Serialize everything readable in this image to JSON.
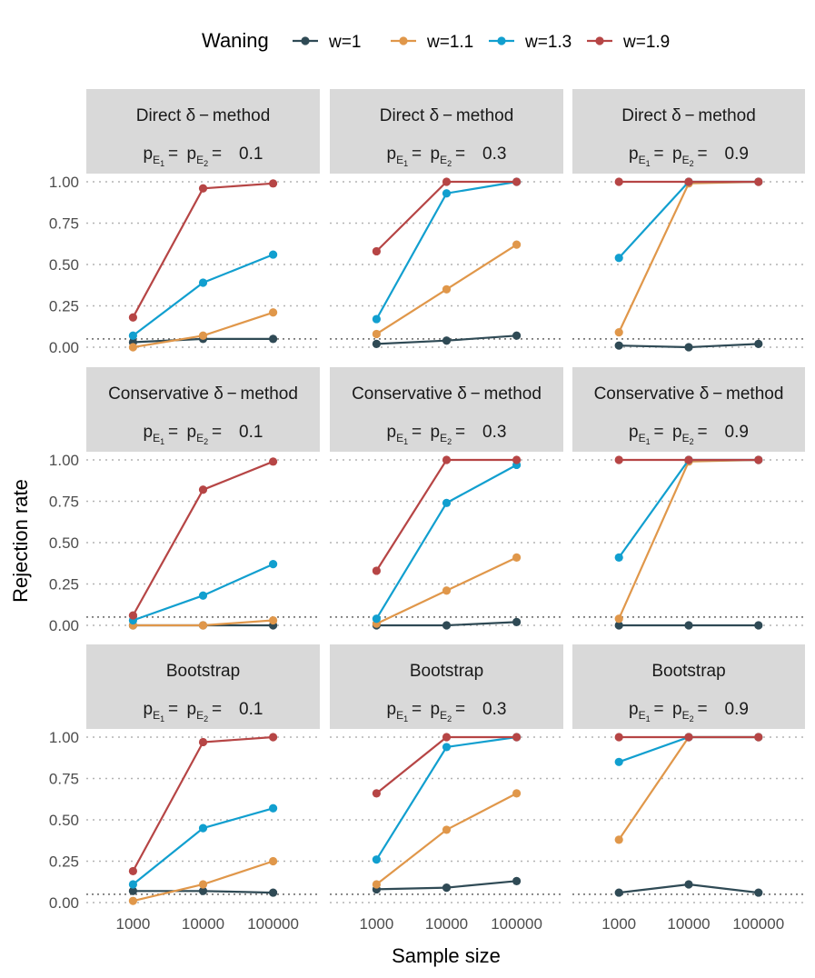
{
  "chart_data": {
    "type": "line",
    "xlabel": "Sample size",
    "ylabel": "Rejection rate",
    "x": [
      "1000",
      "10000",
      "100000"
    ],
    "ylim": [
      0,
      1
    ],
    "yticks": [
      "0.00",
      "0.25",
      "0.50",
      "0.75",
      "1.00"
    ],
    "reference_line": 0.05,
    "legend": {
      "title": "Waning",
      "position": "top",
      "entries": [
        {
          "name": "w=1",
          "color": "#2f4a55"
        },
        {
          "name": "w=1.1",
          "color": "#e0974a"
        },
        {
          "name": "w=1.3",
          "color": "#119fcf"
        },
        {
          "name": "w=1.9",
          "color": "#b64545"
        }
      ]
    },
    "row_labels": [
      "Direct  δ − method",
      "Conservative  δ − method",
      "Bootstrap"
    ],
    "col_prefix": "p",
    "col_sub1": "E",
    "col_sub1b": "1",
    "col_sub2b": "2",
    "col_values": [
      "0.1",
      "0.3",
      "0.9"
    ],
    "panels": [
      [
        {
          "w=1": [
            0.03,
            0.05,
            0.05
          ],
          "w=1.1": [
            0.0,
            0.07,
            0.21
          ],
          "w=1.3": [
            0.07,
            0.39,
            0.56
          ],
          "w=1.9": [
            0.18,
            0.96,
            0.99
          ]
        },
        {
          "w=1": [
            0.02,
            0.04,
            0.07
          ],
          "w=1.1": [
            0.08,
            0.35,
            0.62
          ],
          "w=1.3": [
            0.17,
            0.93,
            1.0
          ],
          "w=1.9": [
            0.58,
            1.0,
            1.0
          ]
        },
        {
          "w=1": [
            0.01,
            0.0,
            0.02
          ],
          "w=1.1": [
            0.09,
            0.99,
            1.0
          ],
          "w=1.3": [
            0.54,
            1.0,
            1.0
          ],
          "w=1.9": [
            1.0,
            1.0,
            1.0
          ]
        }
      ],
      [
        {
          "w=1": [
            0.0,
            0.0,
            0.0
          ],
          "w=1.1": [
            0.0,
            0.0,
            0.03
          ],
          "w=1.3": [
            0.03,
            0.18,
            0.37
          ],
          "w=1.9": [
            0.06,
            0.82,
            0.99
          ]
        },
        {
          "w=1": [
            0.0,
            0.0,
            0.02
          ],
          "w=1.1": [
            0.01,
            0.21,
            0.41
          ],
          "w=1.3": [
            0.04,
            0.74,
            0.97
          ],
          "w=1.9": [
            0.33,
            1.0,
            1.0
          ]
        },
        {
          "w=1": [
            0.0,
            0.0,
            0.0
          ],
          "w=1.1": [
            0.04,
            0.99,
            1.0
          ],
          "w=1.3": [
            0.41,
            1.0,
            1.0
          ],
          "w=1.9": [
            1.0,
            1.0,
            1.0
          ]
        }
      ],
      [
        {
          "w=1": [
            0.07,
            0.07,
            0.06
          ],
          "w=1.1": [
            0.01,
            0.11,
            0.25
          ],
          "w=1.3": [
            0.11,
            0.45,
            0.57
          ],
          "w=1.9": [
            0.19,
            0.97,
            1.0
          ]
        },
        {
          "w=1": [
            0.08,
            0.09,
            0.13
          ],
          "w=1.1": [
            0.11,
            0.44,
            0.66
          ],
          "w=1.3": [
            0.26,
            0.94,
            1.0
          ],
          "w=1.9": [
            0.66,
            1.0,
            1.0
          ]
        },
        {
          "w=1": [
            0.06,
            0.11,
            0.06
          ],
          "w=1.1": [
            0.38,
            1.0,
            1.0
          ],
          "w=1.3": [
            0.85,
            1.0,
            1.0
          ],
          "w=1.9": [
            1.0,
            1.0,
            1.0
          ]
        }
      ]
    ]
  }
}
